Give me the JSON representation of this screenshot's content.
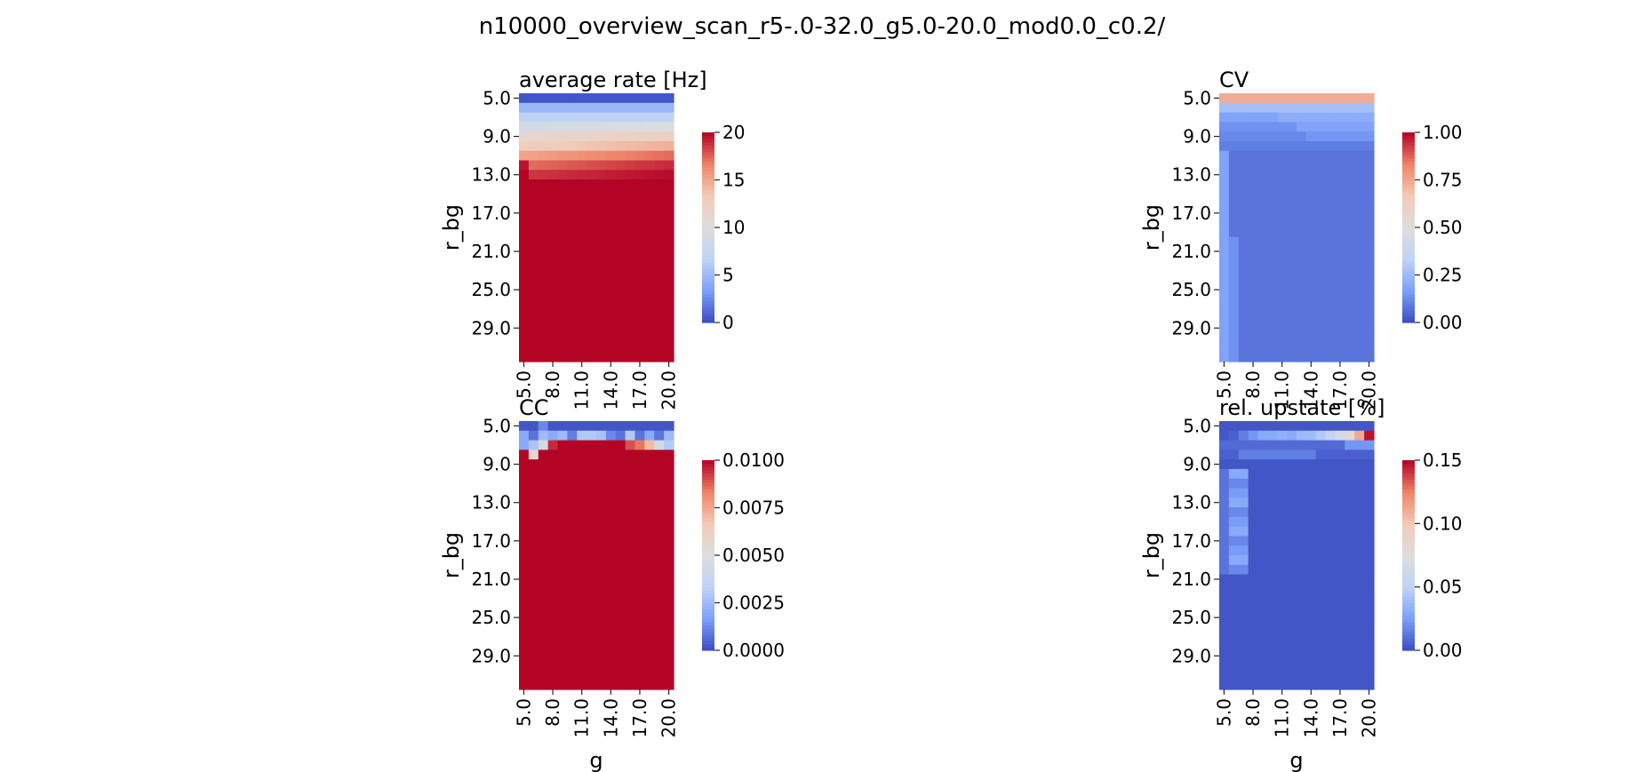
{
  "figure": {
    "suptitle": "n10000_overview_scan_r5-.0-32.0_g5.0-20.0_mod0.0_c0.2/"
  },
  "colormap": {
    "name": "coolwarm",
    "stops": [
      "#3b4cc0",
      "#7b9ff9",
      "#c0d4f5",
      "#dddddd",
      "#f2cbb7",
      "#ee8468",
      "#b40426"
    ]
  },
  "chart_data": [
    {
      "type": "heatmap",
      "title": "average rate [Hz]",
      "xlabel": "",
      "ylabel": "r_bg",
      "x_ticks": [
        "5.0",
        "8.0",
        "11.0",
        "14.0",
        "17.0",
        "20.0"
      ],
      "y_ticks": [
        "5.0",
        "9.0",
        "13.0",
        "17.0",
        "21.0",
        "25.0",
        "29.0"
      ],
      "x_range": [
        5.0,
        20.0
      ],
      "y_range": [
        5.0,
        32.0
      ],
      "vmin": 0,
      "vmax": 20,
      "colorbar_ticks": [
        "0",
        "5",
        "10",
        "15",
        "20"
      ],
      "pattern": "rate"
    },
    {
      "type": "heatmap",
      "title": "CV",
      "xlabel": "",
      "ylabel": "r_bg",
      "x_ticks": [
        "5.0",
        "8.0",
        "11.0",
        "14.0",
        "17.0",
        "20.0"
      ],
      "y_ticks": [
        "5.0",
        "9.0",
        "13.0",
        "17.0",
        "21.0",
        "25.0",
        "29.0"
      ],
      "x_range": [
        5.0,
        20.0
      ],
      "y_range": [
        5.0,
        32.0
      ],
      "vmin": 0.0,
      "vmax": 1.0,
      "colorbar_ticks": [
        "0.00",
        "0.25",
        "0.50",
        "0.75",
        "1.00"
      ],
      "pattern": "cv"
    },
    {
      "type": "heatmap",
      "title": "CC",
      "xlabel": "g",
      "ylabel": "r_bg",
      "x_ticks": [
        "5.0",
        "8.0",
        "11.0",
        "14.0",
        "17.0",
        "20.0"
      ],
      "y_ticks": [
        "5.0",
        "9.0",
        "13.0",
        "17.0",
        "21.0",
        "25.0",
        "29.0"
      ],
      "x_range": [
        5.0,
        20.0
      ],
      "y_range": [
        5.0,
        32.0
      ],
      "vmin": 0.0,
      "vmax": 0.01,
      "colorbar_ticks": [
        "0.0000",
        "0.0025",
        "0.0050",
        "0.0075",
        "0.0100"
      ],
      "pattern": "cc"
    },
    {
      "type": "heatmap",
      "title": "rel. upstate [%]",
      "xlabel": "g",
      "ylabel": "r_bg",
      "x_ticks": [
        "5.0",
        "8.0",
        "11.0",
        "14.0",
        "17.0",
        "20.0"
      ],
      "y_ticks": [
        "5.0",
        "9.0",
        "13.0",
        "17.0",
        "21.0",
        "25.0",
        "29.0"
      ],
      "x_range": [
        5.0,
        20.0
      ],
      "y_range": [
        5.0,
        32.0
      ],
      "vmin": 0.0,
      "vmax": 0.15,
      "colorbar_ticks": [
        "0.00",
        "0.05",
        "0.10",
        "0.15"
      ],
      "pattern": "upstate"
    }
  ]
}
